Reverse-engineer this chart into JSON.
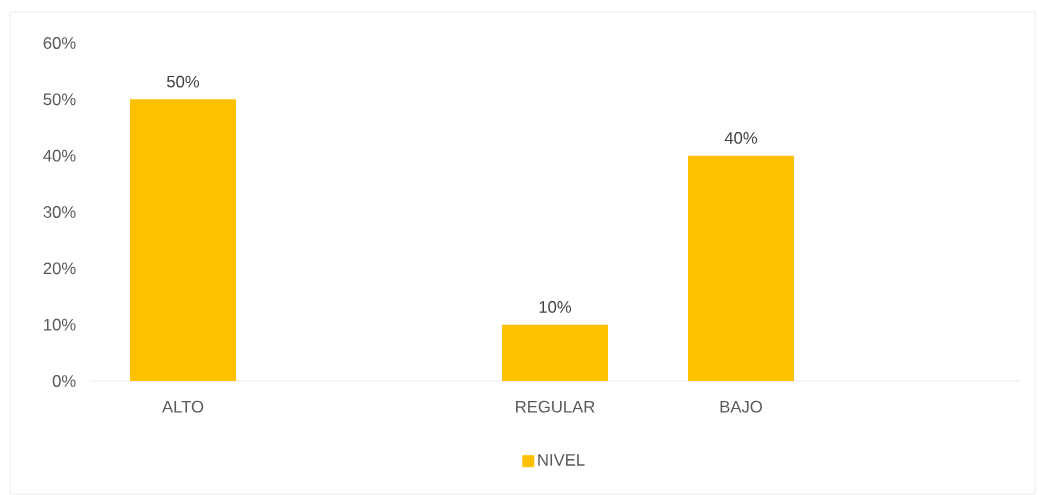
{
  "chart_data": {
    "type": "bar",
    "categories": [
      "ALTO",
      null,
      "REGULAR",
      "BAJO",
      null
    ],
    "series": [
      {
        "name": "NIVEL",
        "color": "#ffc000",
        "values": [
          50,
          null,
          10,
          40,
          null
        ],
        "value_labels": [
          "50%",
          null,
          "10%",
          "40%",
          null
        ]
      }
    ],
    "ylim": [
      0,
      60
    ],
    "yticks": [
      {
        "value": 0,
        "label": "0%"
      },
      {
        "value": 10,
        "label": "10%"
      },
      {
        "value": 20,
        "label": "20%"
      },
      {
        "value": 30,
        "label": "30%"
      },
      {
        "value": 40,
        "label": "40%"
      },
      {
        "value": 50,
        "label": "50%"
      },
      {
        "value": 60,
        "label": "60%"
      }
    ],
    "legend": "bottom"
  }
}
